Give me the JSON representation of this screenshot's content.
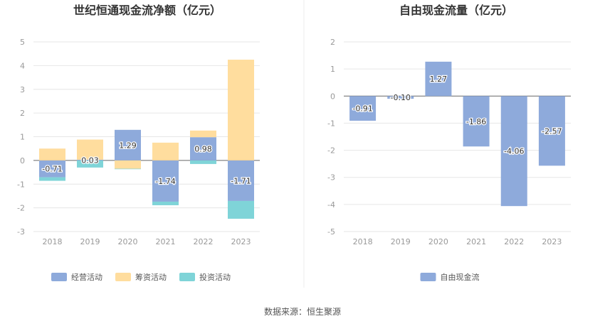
{
  "chart_data": [
    {
      "type": "bar",
      "stacked": true,
      "title": "世纪恒通现金流净额（亿元）",
      "categories": [
        "2018",
        "2019",
        "2020",
        "2021",
        "2022",
        "2023"
      ],
      "ylim": [
        -3,
        5
      ],
      "yticks": [
        "5",
        "4",
        "3",
        "2",
        "1",
        "0",
        "-1",
        "-2",
        "-3"
      ],
      "series": [
        {
          "name": "经营活动",
          "color": "#8eaadb",
          "values": [
            -0.71,
            0.03,
            1.29,
            -1.74,
            0.98,
            -1.71
          ],
          "labels": [
            "-0.71",
            "0.03",
            "1.29",
            "-1.74",
            "0.98",
            "-1.71"
          ]
        },
        {
          "name": "筹资活动",
          "color": "#ffdd9e",
          "values": [
            0.5,
            0.85,
            -0.35,
            0.75,
            0.28,
            4.25
          ]
        },
        {
          "name": "投资活动",
          "color": "#7fd4d8",
          "values": [
            -0.15,
            -0.3,
            -0.02,
            -0.15,
            -0.15,
            -0.75
          ]
        }
      ],
      "legend": "bottom",
      "gridlines": true
    },
    {
      "type": "bar",
      "title": "自由现金流量（亿元）",
      "categories": [
        "2018",
        "2019",
        "2020",
        "2021",
        "2022",
        "2023"
      ],
      "ylim": [
        -5,
        2
      ],
      "yticks": [
        "2",
        "1",
        "0",
        "-1",
        "-2",
        "-3",
        "-4",
        "-5"
      ],
      "series": [
        {
          "name": "自由现金流",
          "color": "#8eaadb",
          "values": [
            -0.91,
            -0.1,
            1.27,
            -1.86,
            -4.06,
            -2.57
          ],
          "labels": [
            "-0.91",
            "-0.10",
            "1.27",
            "-1.86",
            "-4.06",
            "-2.57"
          ]
        }
      ],
      "legend": "bottom",
      "gridlines": true
    }
  ],
  "source": "数据来源：恒生聚源"
}
